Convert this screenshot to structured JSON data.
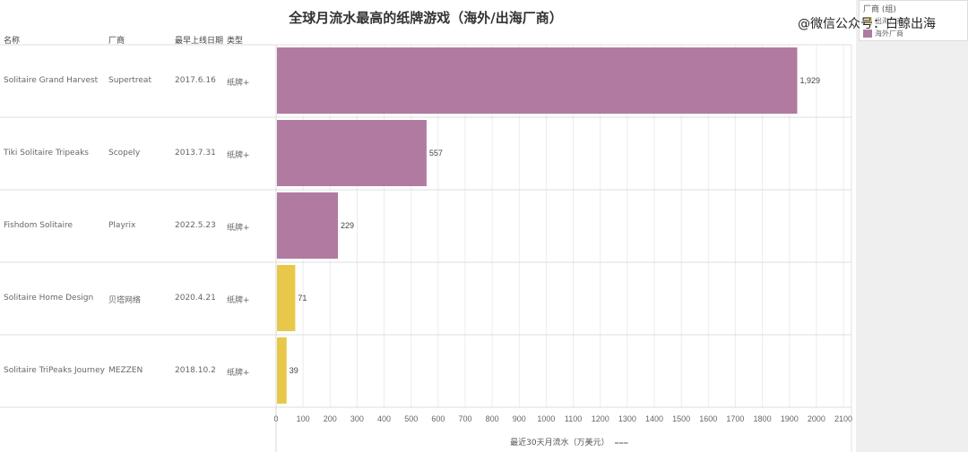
{
  "watermark": "@微信公众号：白鲸出海",
  "legend": {
    "title": "厂商 (组)",
    "items": [
      {
        "label": "出海厂商",
        "color": "#e8c84a"
      },
      {
        "label": "海外厂商",
        "color": "#b07aa1"
      }
    ]
  },
  "columns": {
    "name": "名称",
    "vendor": "厂商",
    "date": "最早上线日期",
    "type": "类型"
  },
  "chart_data": {
    "type": "bar",
    "orientation": "horizontal",
    "title": "全球月流水最高的纸牌游戏（海外/出海厂商）",
    "xlabel": "最近30天月流水（万美元）",
    "xlim": [
      0,
      2100
    ],
    "xticks": [
      0,
      100,
      200,
      300,
      400,
      500,
      600,
      700,
      800,
      900,
      1000,
      1100,
      1200,
      1300,
      1400,
      1500,
      1600,
      1700,
      1800,
      1900,
      2000,
      2100
    ],
    "grid": true,
    "legend_position": "top-right",
    "rows": [
      {
        "name": "Solitaire Grand Harvest",
        "vendor": "Supertreat",
        "date": "2017.6.16",
        "type": "纸牌+",
        "value": 1929,
        "value_label": "1,929",
        "group": "海外厂商",
        "color": "#b07aa1"
      },
      {
        "name": "Tiki Solitaire Tripeaks",
        "vendor": "Scopely",
        "date": "2013.7.31",
        "type": "纸牌+",
        "value": 557,
        "value_label": "557",
        "group": "海外厂商",
        "color": "#b07aa1"
      },
      {
        "name": "Fishdom Solitaire",
        "vendor": "Playrix",
        "date": "2022.5.23",
        "type": "纸牌+",
        "value": 229,
        "value_label": "229",
        "group": "海外厂商",
        "color": "#b07aa1"
      },
      {
        "name": "Solitaire Home Design",
        "vendor": "贝塔网络",
        "date": "2020.4.21",
        "type": "纸牌+",
        "value": 71,
        "value_label": "71",
        "group": "出海厂商",
        "color": "#e8c84a"
      },
      {
        "name": "Solitaire TriPeaks Journey",
        "vendor": "MEZZEN",
        "date": "2018.10.2",
        "type": "纸牌+",
        "value": 39,
        "value_label": "39",
        "group": "出海厂商",
        "color": "#e8c84a"
      }
    ]
  }
}
